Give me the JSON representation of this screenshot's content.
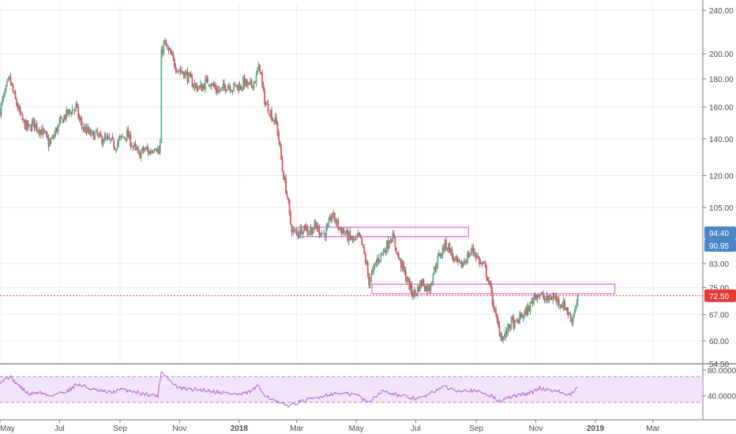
{
  "colors": {
    "up": "#53b987",
    "down": "#eb4d5c",
    "wick": "#4a4a4a",
    "zone": "#e040e8",
    "rsi_line": "#b35ed6",
    "rsi_band": "#ead4f5",
    "last_price": "#e53935",
    "badge_blue": "#4a86c8",
    "axis_text": "#4a4a4a",
    "grid": "#eeeeee"
  },
  "chart_data": [
    {
      "type": "candlestick",
      "log_scale": true,
      "ylim": [
        54.5,
        250
      ],
      "xlim": [
        0,
        820
      ],
      "grid": true,
      "y_ticks": [
        "240.00",
        "200.00",
        "180.00",
        "160.00",
        "140.00",
        "120.00",
        "105.00",
        "83.00",
        "75.00",
        "67.00",
        "60.00",
        "54.50"
      ],
      "x_ticks": [
        {
          "label": "May",
          "x": 0
        },
        {
          "label": "Jul",
          "x": 61
        },
        {
          "label": "Sep",
          "x": 123
        },
        {
          "label": "Nov",
          "x": 184
        },
        {
          "label": "2018",
          "x": 245
        },
        {
          "label": "Mar",
          "x": 304
        },
        {
          "label": "May",
          "x": 365
        },
        {
          "label": "Jul",
          "x": 426
        },
        {
          "label": "Sep",
          "x": 488
        },
        {
          "label": "Nov",
          "x": 549
        },
        {
          "label": "2019",
          "x": 610
        },
        {
          "label": "Mar",
          "x": 669
        }
      ],
      "anchors": [
        [
          0,
          158
        ],
        [
          6,
          172
        ],
        [
          10,
          180
        ],
        [
          14,
          168
        ],
        [
          18,
          160
        ],
        [
          22,
          152
        ],
        [
          26,
          148
        ],
        [
          30,
          146
        ],
        [
          34,
          150
        ],
        [
          38,
          147
        ],
        [
          42,
          145
        ],
        [
          46,
          142
        ],
        [
          50,
          137
        ],
        [
          54,
          140
        ],
        [
          58,
          146
        ],
        [
          62,
          150
        ],
        [
          66,
          154
        ],
        [
          70,
          156
        ],
        [
          74,
          158
        ],
        [
          78,
          160
        ],
        [
          82,
          150
        ],
        [
          86,
          146
        ],
        [
          90,
          144
        ],
        [
          94,
          142
        ],
        [
          98,
          143
        ],
        [
          102,
          140
        ],
        [
          106,
          140
        ],
        [
          110,
          139
        ],
        [
          114,
          138
        ],
        [
          118,
          136
        ],
        [
          122,
          139
        ],
        [
          126,
          141
        ],
        [
          130,
          143
        ],
        [
          134,
          138
        ],
        [
          138,
          134
        ],
        [
          142,
          131
        ],
        [
          146,
          133
        ],
        [
          150,
          134
        ],
        [
          153,
          132
        ],
        [
          156,
          134
        ],
        [
          159,
          137
        ],
        [
          162,
          133
        ],
        [
          164,
          130
        ],
        [
          165,
          198
        ],
        [
          168,
          210
        ],
        [
          171,
          204
        ],
        [
          174,
          200
        ],
        [
          178,
          193
        ],
        [
          182,
          188
        ],
        [
          186,
          186
        ],
        [
          190,
          184
        ],
        [
          194,
          180
        ],
        [
          198,
          176
        ],
        [
          202,
          174
        ],
        [
          206,
          173
        ],
        [
          210,
          177
        ],
        [
          214,
          179
        ],
        [
          218,
          175
        ],
        [
          222,
          172
        ],
        [
          226,
          171
        ],
        [
          230,
          174
        ],
        [
          234,
          176
        ],
        [
          238,
          173
        ],
        [
          242,
          175
        ],
        [
          246,
          174
        ],
        [
          250,
          178
        ],
        [
          254,
          174
        ],
        [
          258,
          176
        ],
        [
          262,
          180
        ],
        [
          266,
          191
        ],
        [
          269,
          172
        ],
        [
          272,
          162
        ],
        [
          276,
          158
        ],
        [
          280,
          152
        ],
        [
          283,
          150
        ],
        [
          286,
          138
        ],
        [
          289,
          124
        ],
        [
          292,
          116
        ],
        [
          295,
          108
        ],
        [
          297,
          99
        ],
        [
          300,
          95
        ],
        [
          304,
          94
        ],
        [
          308,
          96
        ],
        [
          312,
          97
        ],
        [
          316,
          95
        ],
        [
          320,
          96
        ],
        [
          324,
          97
        ],
        [
          328,
          95
        ],
        [
          332,
          94
        ],
        [
          336,
          96
        ],
        [
          340,
          102
        ],
        [
          344,
          99
        ],
        [
          348,
          96
        ],
        [
          352,
          95
        ],
        [
          356,
          93
        ],
        [
          360,
          92
        ],
        [
          364,
          91
        ],
        [
          368,
          93
        ],
        [
          372,
          88
        ],
        [
          375,
          83
        ],
        [
          378,
          77
        ],
        [
          382,
          80
        ],
        [
          386,
          84
        ],
        [
          390,
          86
        ],
        [
          394,
          88
        ],
        [
          397,
          90
        ],
        [
          400,
          93
        ],
        [
          403,
          92
        ],
        [
          406,
          88
        ],
        [
          409,
          84
        ],
        [
          412,
          82
        ],
        [
          415,
          79
        ],
        [
          418,
          77
        ],
        [
          421,
          74
        ],
        [
          424,
          73
        ],
        [
          427,
          74
        ],
        [
          430,
          76
        ],
        [
          433,
          77
        ],
        [
          436,
          75
        ],
        [
          440,
          75
        ],
        [
          444,
          80
        ],
        [
          448,
          84
        ],
        [
          452,
          87
        ],
        [
          456,
          90
        ],
        [
          460,
          89
        ],
        [
          464,
          85
        ],
        [
          468,
          83
        ],
        [
          472,
          82
        ],
        [
          476,
          84
        ],
        [
          480,
          86
        ],
        [
          484,
          88
        ],
        [
          488,
          86
        ],
        [
          492,
          83
        ],
        [
          496,
          82
        ],
        [
          500,
          78
        ],
        [
          504,
          72
        ],
        [
          508,
          66
        ],
        [
          511,
          63
        ],
        [
          514,
          61
        ],
        [
          517,
          61
        ],
        [
          520,
          63
        ],
        [
          524,
          65
        ],
        [
          528,
          64
        ],
        [
          532,
          66
        ],
        [
          536,
          67
        ],
        [
          540,
          68
        ],
        [
          544,
          70
        ],
        [
          548,
          73
        ],
        [
          552,
          73
        ],
        [
          556,
          72
        ],
        [
          560,
          71
        ],
        [
          564,
          72
        ],
        [
          568,
          72
        ],
        [
          572,
          71
        ],
        [
          576,
          70
        ],
        [
          580,
          69
        ],
        [
          583,
          67
        ],
        [
          585,
          65
        ],
        [
          587,
          67
        ],
        [
          590,
          70
        ],
        [
          592,
          72.5
        ]
      ],
      "current_price": 72.5,
      "price_badges": [
        "94.40",
        "90.95",
        "72.50"
      ],
      "zones": [
        {
          "x0": 305,
          "x1": 480,
          "y0": 92.9,
          "y1": 96.6
        },
        {
          "x0": 381,
          "x1": 630,
          "y0": 73.1,
          "y1": 76.1
        }
      ]
    },
    {
      "type": "line",
      "indicator": "RSI",
      "ylim": [
        20,
        85
      ],
      "band": [
        30,
        70
      ],
      "y_ticks": [
        "80.0000",
        "40.0000"
      ],
      "anchors": [
        [
          0,
          62
        ],
        [
          10,
          70
        ],
        [
          20,
          55
        ],
        [
          30,
          42
        ],
        [
          40,
          46
        ],
        [
          50,
          40
        ],
        [
          60,
          44
        ],
        [
          70,
          48
        ],
        [
          78,
          58
        ],
        [
          86,
          55
        ],
        [
          94,
          50
        ],
        [
          104,
          47
        ],
        [
          114,
          45
        ],
        [
          124,
          50
        ],
        [
          134,
          48
        ],
        [
          144,
          44
        ],
        [
          154,
          42
        ],
        [
          162,
          40
        ],
        [
          165,
          78
        ],
        [
          170,
          72
        ],
        [
          176,
          60
        ],
        [
          184,
          52
        ],
        [
          194,
          50
        ],
        [
          204,
          50
        ],
        [
          214,
          48
        ],
        [
          224,
          46
        ],
        [
          234,
          44
        ],
        [
          246,
          42
        ],
        [
          256,
          46
        ],
        [
          264,
          55
        ],
        [
          270,
          44
        ],
        [
          278,
          35
        ],
        [
          286,
          28
        ],
        [
          296,
          25
        ],
        [
          306,
          30
        ],
        [
          316,
          34
        ],
        [
          326,
          38
        ],
        [
          336,
          42
        ],
        [
          346,
          44
        ],
        [
          356,
          43
        ],
        [
          366,
          42
        ],
        [
          376,
          30
        ],
        [
          382,
          36
        ],
        [
          388,
          44
        ],
        [
          394,
          48
        ],
        [
          402,
          44
        ],
        [
          410,
          40
        ],
        [
          418,
          38
        ],
        [
          426,
          36
        ],
        [
          434,
          38
        ],
        [
          444,
          46
        ],
        [
          452,
          54
        ],
        [
          460,
          52
        ],
        [
          468,
          48
        ],
        [
          476,
          50
        ],
        [
          484,
          48
        ],
        [
          494,
          45
        ],
        [
          504,
          40
        ],
        [
          510,
          32
        ],
        [
          516,
          33
        ],
        [
          522,
          38
        ],
        [
          530,
          41
        ],
        [
          538,
          43
        ],
        [
          546,
          46
        ],
        [
          552,
          52
        ],
        [
          560,
          50
        ],
        [
          568,
          48
        ],
        [
          576,
          45
        ],
        [
          582,
          40
        ],
        [
          586,
          44
        ],
        [
          592,
          52
        ]
      ]
    }
  ]
}
